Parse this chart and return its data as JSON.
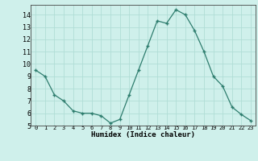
{
  "x": [
    0,
    1,
    2,
    3,
    4,
    5,
    6,
    7,
    8,
    9,
    10,
    11,
    12,
    13,
    14,
    15,
    16,
    17,
    18,
    19,
    20,
    21,
    22,
    23
  ],
  "y": [
    9.5,
    9.0,
    7.5,
    7.0,
    6.2,
    6.0,
    6.0,
    5.8,
    5.2,
    5.5,
    7.5,
    9.5,
    11.5,
    13.5,
    13.3,
    14.4,
    14.0,
    12.7,
    11.0,
    9.0,
    8.2,
    6.5,
    5.9,
    5.4
  ],
  "xlabel": "Humidex (Indice chaleur)",
  "ylim": [
    5,
    14.8
  ],
  "xlim": [
    -0.5,
    23.5
  ],
  "yticks": [
    5,
    6,
    7,
    8,
    9,
    10,
    11,
    12,
    13,
    14
  ],
  "xticks": [
    0,
    1,
    2,
    3,
    4,
    5,
    6,
    7,
    8,
    9,
    10,
    11,
    12,
    13,
    14,
    15,
    16,
    17,
    18,
    19,
    20,
    21,
    22,
    23
  ],
  "line_color": "#2e7d6e",
  "marker_color": "#2e7d6e",
  "bg_color": "#cff0eb",
  "grid_color": "#b0ddd6"
}
